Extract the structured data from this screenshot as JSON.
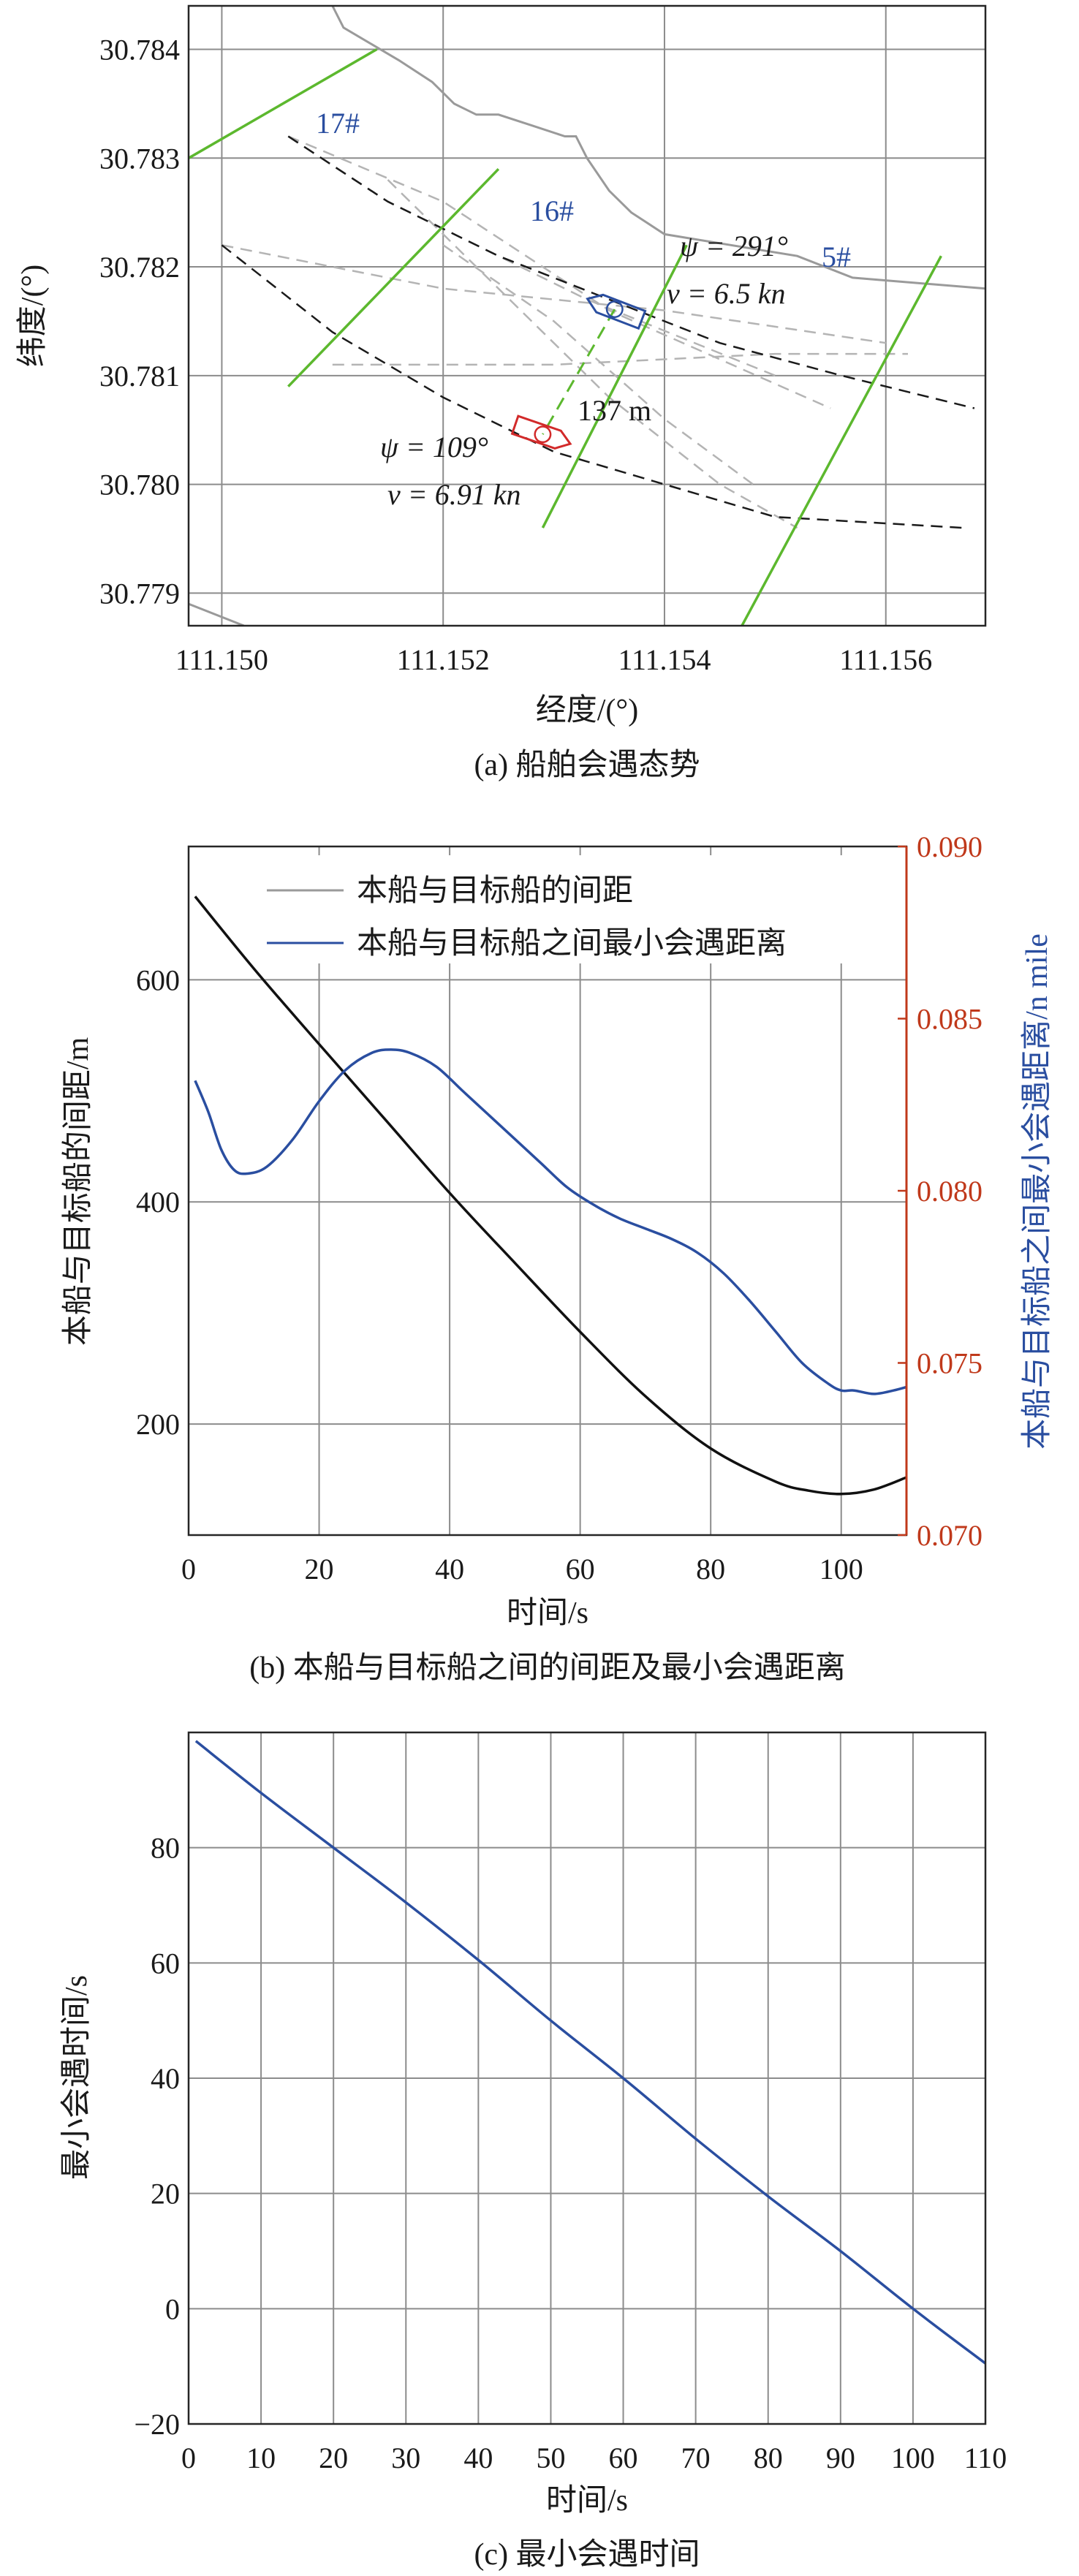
{
  "colors": {
    "axis_black": "#1a1a1a",
    "grid": "#8c8c8c",
    "green": "#5cb82e",
    "blue": "#2a4ea0",
    "red": "#d22a2a",
    "orange_axis": "#c0391b",
    "grey_line": "#9a9a9a",
    "dash_grey": "#b4b4b4"
  },
  "chart_data": [
    {
      "type": "scatter",
      "caption": "(a) 船舶会遇态势",
      "xlabel": "经度/(°)",
      "ylabel": "纬度/(°)",
      "xlim": [
        111.1497,
        111.1569
      ],
      "ylim": [
        30.7787,
        30.7844
      ],
      "xticks": [
        111.15,
        111.152,
        111.154,
        111.156
      ],
      "xtick_labels": [
        "111.150",
        "111.152",
        "111.154",
        "111.156"
      ],
      "yticks": [
        30.779,
        30.78,
        30.781,
        30.782,
        30.783,
        30.784
      ],
      "ytick_labels": [
        "30.779",
        "30.780",
        "30.781",
        "30.782",
        "30.783",
        "30.784"
      ],
      "grid": true,
      "anchors": [
        "17#",
        "16#",
        "5#"
      ],
      "annotations": {
        "ship1_heading": "ψ = 291°",
        "ship1_speed": "v = 6.5 kn",
        "distance": "137 m",
        "ship2_heading": "ψ = 109°",
        "ship2_speed": "v = 6.91 kn"
      },
      "shorelines": [
        [
          [
            111.151,
            30.7844
          ],
          [
            111.1511,
            30.7842
          ],
          [
            111.1516,
            30.7839
          ],
          [
            111.1519,
            30.7837
          ],
          [
            111.1521,
            30.7835
          ],
          [
            111.1523,
            30.7834
          ],
          [
            111.1525,
            30.7834
          ],
          [
            111.1528,
            30.7833
          ],
          [
            111.1531,
            30.7832
          ],
          [
            111.1532,
            30.7832
          ],
          [
            111.1533,
            30.783
          ],
          [
            111.1535,
            30.7827
          ],
          [
            111.1537,
            30.7825
          ],
          [
            111.154,
            30.7823
          ],
          [
            111.1546,
            30.7822
          ],
          [
            111.1552,
            30.7821
          ],
          [
            111.1557,
            30.7819
          ],
          [
            111.1569,
            30.7818
          ]
        ],
        [
          [
            111.1497,
            30.7789
          ],
          [
            111.1502,
            30.7787
          ]
        ]
      ],
      "green_lines": [
        [
          [
            111.1497,
            30.783
          ],
          [
            111.1514,
            30.784
          ]
        ],
        [
          [
            111.1506,
            30.7809
          ],
          [
            111.1525,
            30.7829
          ]
        ],
        [
          [
            111.1529,
            30.7796
          ],
          [
            111.1542,
            30.7822
          ]
        ],
        [
          [
            111.1547,
            30.7787
          ],
          [
            111.1565,
            30.7821
          ]
        ]
      ],
      "black_dashed": [
        [
          [
            111.1506,
            30.7832
          ],
          [
            111.1515,
            30.7826
          ],
          [
            111.1525,
            30.7821
          ],
          [
            111.1535,
            30.7817
          ],
          [
            111.1545,
            30.7813
          ],
          [
            111.1556,
            30.781
          ],
          [
            111.1568,
            30.7807
          ]
        ],
        [
          [
            111.15,
            30.7822
          ],
          [
            111.151,
            30.7814
          ],
          [
            111.152,
            30.7808
          ],
          [
            111.153,
            30.7803
          ],
          [
            111.154,
            30.78
          ],
          [
            111.155,
            30.7797
          ],
          [
            111.1567,
            30.7796
          ]
        ]
      ],
      "grey_dashed": [
        [
          [
            111.1506,
            30.7832
          ],
          [
            111.1515,
            30.7826
          ],
          [
            111.1533,
            30.7817
          ],
          [
            111.155,
            30.781
          ]
        ],
        [
          [
            111.1506,
            30.7832
          ],
          [
            111.152,
            30.7826
          ],
          [
            111.1535,
            30.7816
          ],
          [
            111.1555,
            30.7807
          ]
        ],
        [
          [
            111.15,
            30.7822
          ],
          [
            111.152,
            30.7818
          ],
          [
            111.154,
            30.7816
          ],
          [
            111.156,
            30.7813
          ]
        ],
        [
          [
            111.151,
            30.7811
          ],
          [
            111.153,
            30.7811
          ],
          [
            111.155,
            30.7812
          ],
          [
            111.1562,
            30.7812
          ]
        ],
        [
          [
            111.1515,
            30.7828
          ],
          [
            111.1525,
            30.7818
          ],
          [
            111.1535,
            30.7808
          ],
          [
            111.1545,
            30.78
          ],
          [
            111.1552,
            30.7796
          ]
        ],
        [
          [
            111.152,
            30.7822
          ],
          [
            111.153,
            30.7815
          ],
          [
            111.154,
            30.7806
          ],
          [
            111.1548,
            30.78
          ]
        ]
      ],
      "ships": [
        {
          "color": "blue",
          "center": [
            111.15355,
            30.78161
          ],
          "heading_deg": 291,
          "length_m": 50
        },
        {
          "color": "red",
          "center": [
            111.1529,
            30.78046
          ],
          "heading_deg": 109,
          "length_m": 50
        }
      ],
      "cpa_line": [
        [
          111.15355,
          30.78161
        ],
        [
          111.1529,
          30.78046
        ]
      ]
    },
    {
      "type": "line",
      "caption": "(b) 本船与目标船之间的间距及最小会遇距离",
      "xlabel": "时间/s",
      "ylabel_left": "本船与目标船的间距/m",
      "ylabel_right": "本船与目标船之间最小会遇距离/n mile",
      "xlim": [
        0,
        110
      ],
      "ylim_left": [
        100,
        720
      ],
      "ylim_right": [
        0.07,
        0.09
      ],
      "xticks": [
        0,
        20,
        40,
        60,
        80,
        100
      ],
      "xtick_labels": [
        "0",
        "20",
        "40",
        "60",
        "80",
        "100"
      ],
      "yticks_left": [
        200,
        400,
        600
      ],
      "ytick_labels_left": [
        "200",
        "400",
        "600"
      ],
      "yticks_right": [
        0.07,
        0.075,
        0.08,
        0.085,
        0.09
      ],
      "ytick_labels_right": [
        "0.070",
        "0.075",
        "0.080",
        "0.085",
        "0.090"
      ],
      "grid": true,
      "legend": {
        "position": "top-left",
        "entries": [
          "本船与目标船的间距",
          "本船与目标船之间最小会遇距离"
        ]
      },
      "series": [
        {
          "name": "本船与目标船的间距",
          "axis": "left",
          "color": "black",
          "x": [
            1,
            10,
            20,
            30,
            40,
            50,
            60,
            70,
            80,
            90,
            95,
            100,
            105,
            110
          ],
          "values": [
            675,
            610,
            542,
            475,
            408,
            345,
            283,
            225,
            178,
            148,
            140,
            137,
            141,
            152
          ]
        },
        {
          "name": "本船与目标船之间最小会遇距离",
          "axis": "right",
          "color": "blue",
          "x": [
            1,
            3,
            5,
            7,
            9,
            12,
            16,
            20,
            24,
            28,
            31,
            34,
            38,
            42,
            46,
            50,
            54,
            58,
            62,
            66,
            70,
            74,
            78,
            82,
            86,
            90,
            94,
            98,
            100,
            102,
            105,
            108,
            110
          ],
          "values": [
            0.0832,
            0.0823,
            0.0812,
            0.0806,
            0.0805,
            0.0807,
            0.0815,
            0.0826,
            0.0835,
            0.084,
            0.0841,
            0.084,
            0.0836,
            0.0829,
            0.0822,
            0.0815,
            0.0808,
            0.0801,
            0.0796,
            0.0792,
            0.0789,
            0.0786,
            0.0782,
            0.0776,
            0.0768,
            0.0759,
            0.075,
            0.0744,
            0.0742,
            0.0742,
            0.0741,
            0.0742,
            0.0743
          ]
        }
      ]
    },
    {
      "type": "line",
      "caption": "(c) 最小会遇时间",
      "xlabel": "时间/s",
      "ylabel": "最小会遇时间/s",
      "xlim": [
        0,
        110
      ],
      "ylim": [
        -20,
        100
      ],
      "xticks": [
        0,
        10,
        20,
        30,
        40,
        50,
        60,
        70,
        80,
        90,
        100,
        110
      ],
      "xtick_labels": [
        "0",
        "10",
        "20",
        "30",
        "40",
        "50",
        "60",
        "70",
        "80",
        "90",
        "100",
        "110"
      ],
      "yticks": [
        -20,
        0,
        20,
        40,
        60,
        80
      ],
      "ytick_labels": [
        "−20",
        "0",
        "20",
        "40",
        "60",
        "80"
      ],
      "grid": true,
      "series": [
        {
          "color": "blue",
          "x": [
            1,
            10,
            20,
            30,
            40,
            50,
            60,
            70,
            80,
            90,
            100,
            110
          ],
          "values": [
            98.5,
            89.5,
            80,
            70.5,
            60.5,
            50,
            40,
            29.5,
            19.5,
            10,
            0,
            -9.5
          ]
        }
      ]
    }
  ]
}
